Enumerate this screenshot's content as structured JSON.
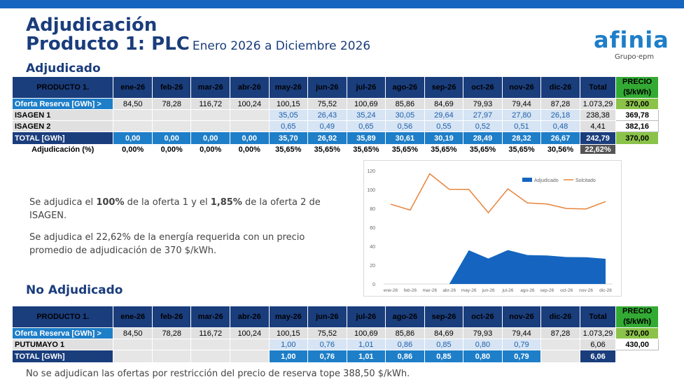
{
  "header": {
    "title": "Adjudicación",
    "subtitle": "Producto 1: PLC",
    "period": "Enero 2026 a Diciembre 2026",
    "logo_word": "afinia",
    "logo_group": "Grupo·epm"
  },
  "adjudicado": {
    "section_title": "Adjudicado",
    "product_label": "PRODUCTO 1.",
    "months": [
      "ene-26",
      "feb-26",
      "mar-26",
      "abr-26",
      "may-26",
      "jun-26",
      "jul-26",
      "ago-26",
      "sep-26",
      "oct-26",
      "nov-26",
      "dic-26"
    ],
    "total_label": "Total",
    "price_label_1": "PRECIO",
    "price_label_2": "($/kWh)",
    "rows": [
      {
        "label": "Oferta Reserva [GWh] >",
        "values": [
          "84,50",
          "78,28",
          "116,72",
          "100,24",
          "100,15",
          "75,52",
          "100,69",
          "85,86",
          "84,69",
          "79,93",
          "79,44",
          "87,28"
        ],
        "total": "1.073,29",
        "price": "370,00"
      },
      {
        "label": "ISAGEN 1",
        "values": [
          "",
          "",
          "",
          "",
          "35,05",
          "26,43",
          "35,24",
          "30,05",
          "29,64",
          "27,97",
          "27,80",
          "26,18"
        ],
        "total": "238,38",
        "price": "369,78"
      },
      {
        "label": "ISAGEN 2",
        "values": [
          "",
          "",
          "",
          "",
          "0,65",
          "0,49",
          "0,65",
          "0,56",
          "0,55",
          "0,52",
          "0,51",
          "0,48"
        ],
        "total": "4,41",
        "price": "382,16"
      }
    ],
    "total_row": {
      "label": "TOTAL [GWh]",
      "values": [
        "0,00",
        "0,00",
        "0,00",
        "0,00",
        "35,70",
        "26,92",
        "35,89",
        "30,61",
        "30,19",
        "28,49",
        "28,32",
        "26,67"
      ],
      "total": "242,79",
      "price": "370,00"
    },
    "pct_row": {
      "label": "Adjudicación (%)",
      "values": [
        "0,00%",
        "0,00%",
        "0,00%",
        "0,00%",
        "35,65%",
        "35,65%",
        "35,65%",
        "35,65%",
        "35,65%",
        "35,65%",
        "35,65%",
        "30,56%"
      ],
      "total": "22,62%"
    }
  },
  "text": {
    "p1_a": "Se adjudica el ",
    "p1_b": "100%",
    "p1_c": " de la oferta 1 y el ",
    "p1_d": "1,85%",
    "p1_e": " de la oferta 2 de ISAGEN.",
    "p2": "Se adjudica el 22,62% de la energía requerida con un precio promedio de adjudicación de 370 $/kWh."
  },
  "chart_data": {
    "type": "area",
    "categories": [
      "ene-26",
      "feb-26",
      "mar-26",
      "abr-26",
      "may-26",
      "jun-26",
      "jul-26",
      "ago-26",
      "sep-26",
      "oct-26",
      "nov-26",
      "dic-26"
    ],
    "series": [
      {
        "name": "Adjudicado",
        "type": "area",
        "color": "#1565c0",
        "values": [
          0,
          0,
          0,
          0,
          35.7,
          26.92,
          35.89,
          30.61,
          30.19,
          28.49,
          28.32,
          26.67
        ]
      },
      {
        "name": "Solcitado",
        "type": "line",
        "color": "#e8833a",
        "values": [
          84.5,
          78.28,
          116.72,
          100.24,
          100.15,
          75.52,
          100.69,
          85.86,
          84.69,
          79.93,
          79.44,
          87.28
        ]
      }
    ],
    "yticks": [
      "0",
      "20",
      "40",
      "60",
      "80",
      "100",
      "120"
    ],
    "ylim": [
      0,
      120
    ],
    "legend": "top-right"
  },
  "no_adjudicado": {
    "section_title": "No Adjudicado",
    "product_label": "PRODUCTO 1.",
    "months": [
      "ene-26",
      "feb-26",
      "mar-26",
      "abr-26",
      "may-26",
      "jun-26",
      "jul-26",
      "ago-26",
      "sep-26",
      "oct-26",
      "nov-26",
      "dic-26"
    ],
    "total_label": "Total",
    "price_label_1": "PRECIO",
    "price_label_2": "($/kWh)",
    "rows": [
      {
        "label": "Oferta Reserva [GWh] >",
        "values": [
          "84,50",
          "78,28",
          "116,72",
          "100,24",
          "100,15",
          "75,52",
          "100,69",
          "85,86",
          "84,69",
          "79,93",
          "79,44",
          "87,28"
        ],
        "total": "1.073,29",
        "price": "370,00"
      },
      {
        "label": "PUTUMAYO 1",
        "values": [
          "",
          "",
          "",
          "",
          "1,00",
          "0,76",
          "1,01",
          "0,86",
          "0,85",
          "0,80",
          "0,79",
          ""
        ],
        "total": "6,06",
        "price": "430,00"
      }
    ],
    "total_row": {
      "label": "TOTAL [GWh]",
      "values": [
        "",
        "",
        "",
        "",
        "1,00",
        "0,76",
        "1,01",
        "0,86",
        "0,85",
        "0,80",
        "0,79",
        ""
      ],
      "total": "6,06"
    }
  },
  "footer": "No se adjudican las ofertas por restricción del precio de reserva tope 388,50 $/kWh."
}
